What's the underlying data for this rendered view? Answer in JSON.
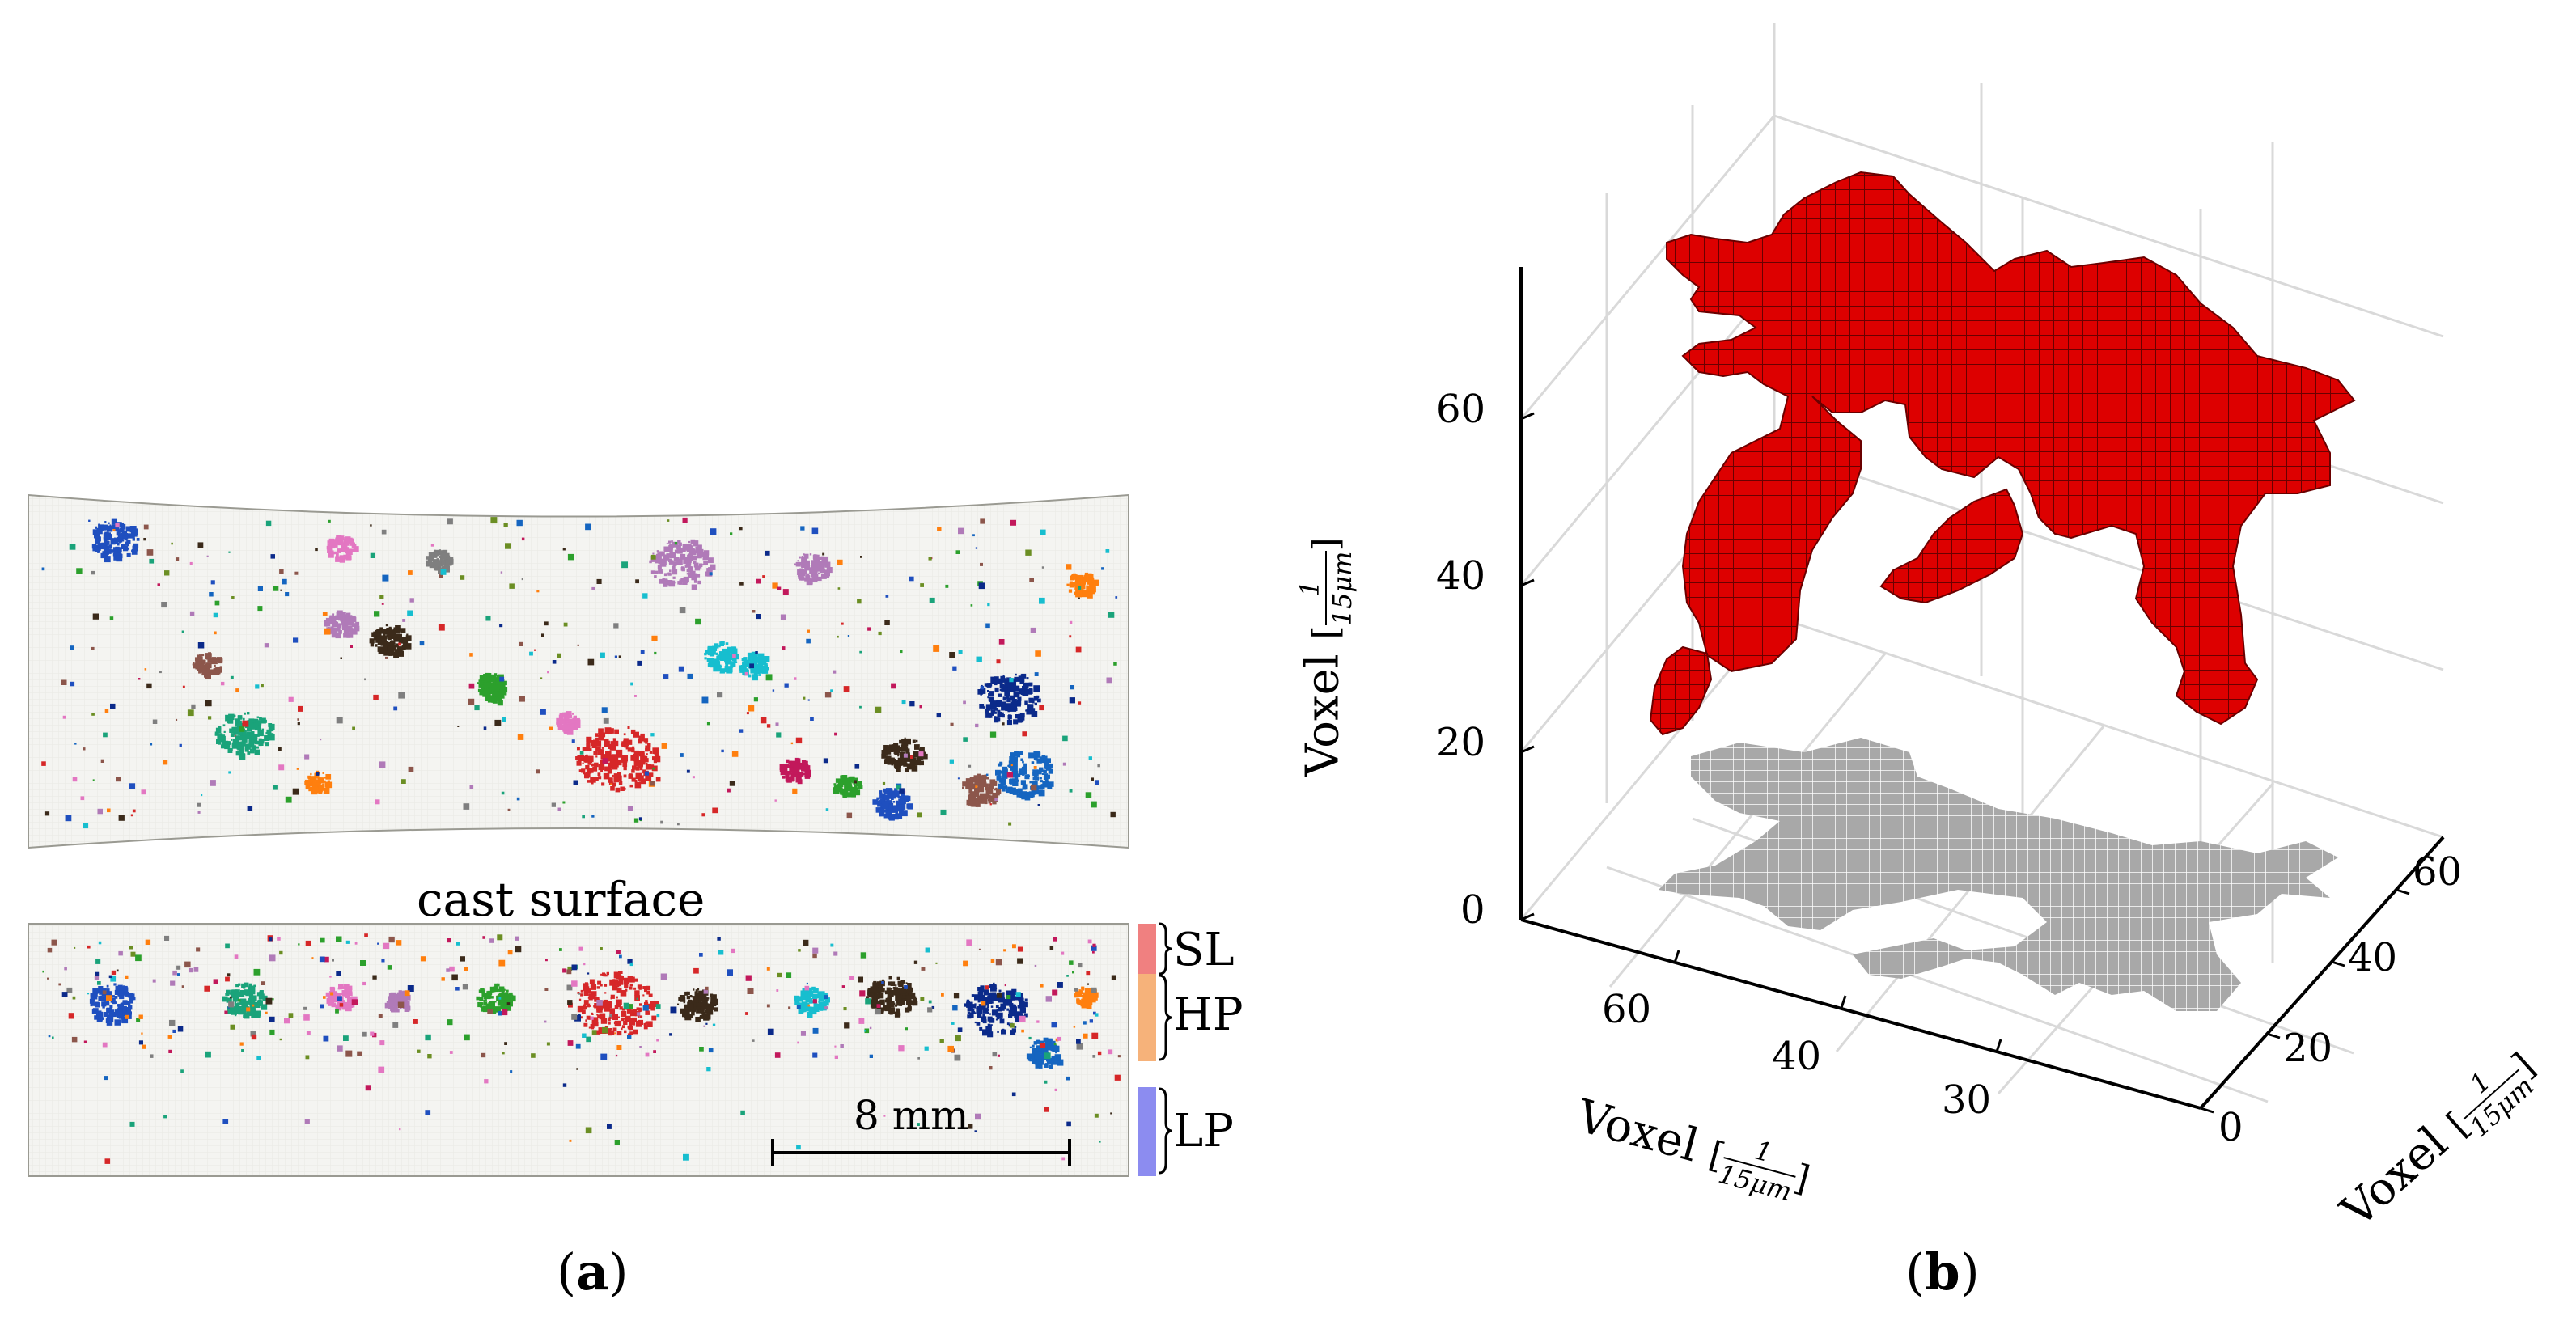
{
  "panel_a": {
    "caption_open": "(",
    "caption_letter": "a",
    "caption_close": ")",
    "cast_surface_label": "cast surface",
    "scale_bar_label": "8 mm",
    "zone_labels": {
      "sl": "SL",
      "hp": "HP",
      "lp": "LP"
    },
    "zone_colors": {
      "sl": "#f08080",
      "hp": "#f6b27a",
      "lp": "#8c8cf0"
    },
    "pore_colors": [
      "#d62728",
      "#1f4fbf",
      "#2ca02c",
      "#b07ab8",
      "#3b2a1a",
      "#17becf",
      "#ff7f0e",
      "#8c564b",
      "#e377c2",
      "#7f7f7f",
      "#0b2a8a",
      "#1aa37a",
      "#c2185b",
      "#6b8e23",
      "#1565c0"
    ]
  },
  "panel_b": {
    "caption_open": "(",
    "caption_letter": "b",
    "caption_close": ")",
    "z_axis": {
      "label": "Voxel",
      "unit_num": "1",
      "unit_den": "15μm",
      "ticks": [
        "0",
        "20",
        "40",
        "60"
      ]
    },
    "x_axis": {
      "label": "Voxel",
      "unit_num": "1",
      "unit_den": "15μm",
      "ticks": [
        "60",
        "40",
        "30"
      ]
    },
    "y_axis": {
      "label": "Voxel",
      "unit_num": "1",
      "unit_den": "15μm",
      "ticks": [
        "0",
        "20",
        "40",
        "60"
      ]
    },
    "colors": {
      "pore": "#dd0000",
      "projection": "#a8a8a8",
      "grid": "#d9d9d9"
    }
  }
}
